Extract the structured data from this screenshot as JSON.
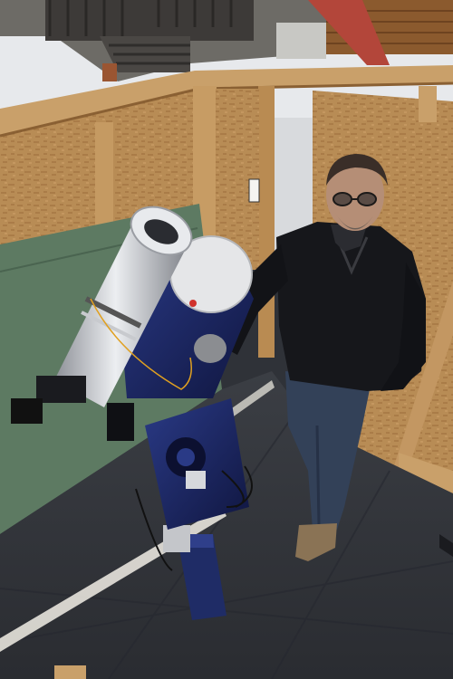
{
  "image": {
    "kind": "photograph",
    "caption": "",
    "subjects": [
      {
        "name": "telescope-assembly",
        "parts": [
          "refractor-tube",
          "reflector-tube",
          "equatorial-mount",
          "pier"
        ]
      },
      {
        "name": "person"
      },
      {
        "name": "observatory-walls"
      },
      {
        "name": "floor"
      },
      {
        "name": "background-yard",
        "parts": [
          "deck",
          "stairs",
          "snowy-ground"
        ]
      }
    ]
  },
  "colors": {
    "plywood": "#b88c55",
    "plywood_dark": "#8a6033",
    "green_panel": "#5d7a62",
    "floor": "#34373d",
    "mount_blue": "#1f2c66",
    "tube_silver": "#c9ccd1",
    "jacket": "#16171b",
    "jeans": "#334158",
    "snow": "#e7e9ec",
    "sunlight": "#f2efe6"
  }
}
